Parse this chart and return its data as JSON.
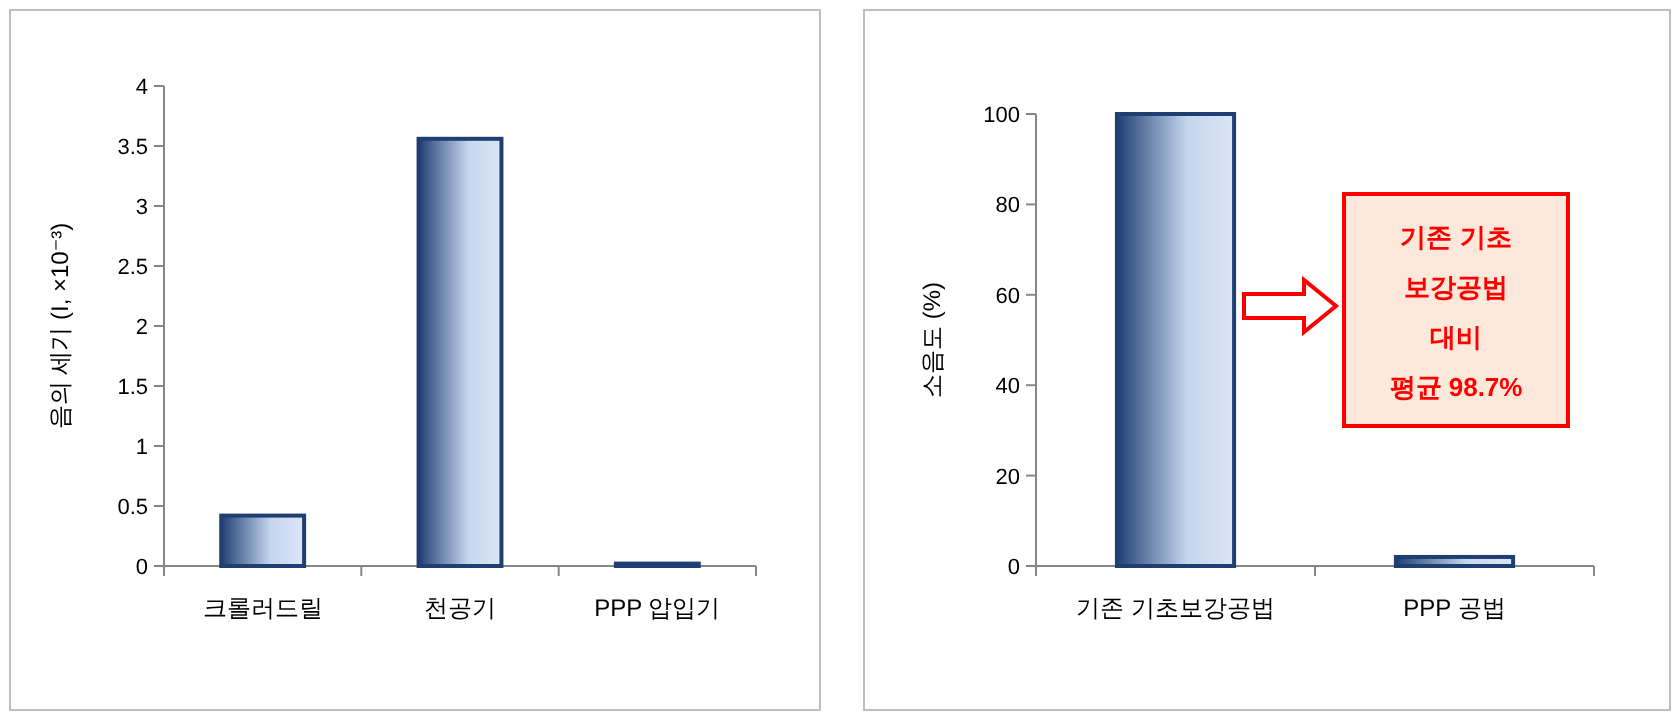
{
  "chart_data": [
    {
      "type": "bar",
      "ylabel": "음의 세기 (I, ×10⁻³)",
      "categories": [
        "크롤러드릴",
        "천공기",
        "PPP 압입기"
      ],
      "values": [
        0.42,
        3.56,
        0.02
      ],
      "color": "#1f3f73",
      "ylim": [
        0,
        4
      ],
      "yticks": [
        0,
        0.5,
        1,
        1.5,
        2,
        2.5,
        3,
        3.5,
        4
      ]
    },
    {
      "type": "bar",
      "ylabel": "소음도 (%)",
      "categories": [
        "기존 기초보강공법",
        "PPP 공법"
      ],
      "values": [
        100,
        2
      ],
      "color": "#1f3f73",
      "ylim": [
        0,
        100
      ],
      "yticks": [
        0,
        20,
        40,
        60,
        80,
        100
      ],
      "annotations": [
        "기존 기초\n보강공법\n대비\n평균 98.7%"
      ]
    }
  ]
}
